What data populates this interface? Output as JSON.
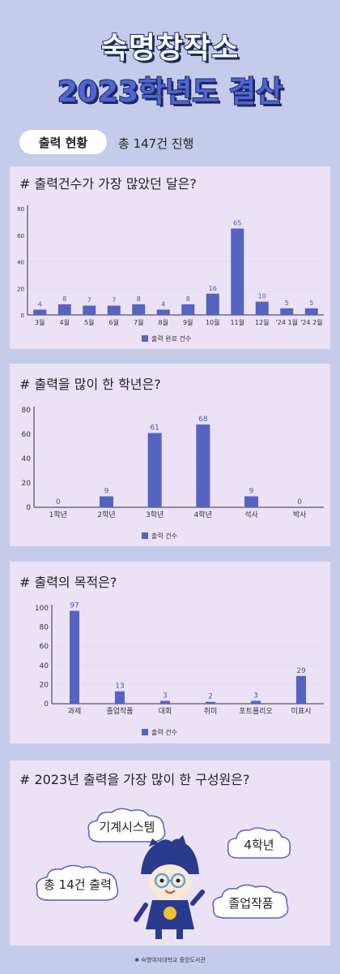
{
  "header": {
    "title_line1": "숙명창작소",
    "title_line2": "2023학년도 결산"
  },
  "summary": {
    "pill_label": "출력 현황",
    "text": "총 147건 진행"
  },
  "panel1": {
    "question": "# 출력건수가 가장 많았던 달은?"
  },
  "panel2": {
    "question": "# 출력을 많이 한 학년은?"
  },
  "panel3": {
    "question": "# 출력의 목적은?"
  },
  "panel4": {
    "question": "# 2023년 출력을 가장 많이 한 구성원은?",
    "clouds": [
      "기계시스템",
      "4학년",
      "총 14건 출력",
      "졸업작품"
    ]
  },
  "footer": {
    "text": "숙명여자대학교 중앙도서관"
  },
  "colors": {
    "bar": "#5563c1",
    "panel": "#ebe2f6",
    "background": "#c5cbe8"
  },
  "chart_data": [
    {
      "type": "bar",
      "categories": [
        "3월",
        "4월",
        "5월",
        "6월",
        "7월",
        "8월",
        "9월",
        "10월",
        "11월",
        "12월",
        "'24 1월",
        "'24 2월"
      ],
      "values": [
        4,
        8,
        7,
        7,
        8,
        4,
        8,
        16,
        65,
        10,
        5,
        5
      ],
      "legend": "출력 완료 건수",
      "ylim": [
        0,
        80
      ],
      "yticks": [
        0,
        20,
        40,
        60,
        80
      ]
    },
    {
      "type": "bar",
      "categories": [
        "1학년",
        "2학년",
        "3학년",
        "4학년",
        "석사",
        "박사"
      ],
      "values": [
        0,
        9,
        61,
        68,
        9,
        0
      ],
      "legend": "출력 건수",
      "ylim": [
        0,
        80
      ],
      "yticks": [
        0,
        20,
        40,
        60,
        80
      ]
    },
    {
      "type": "bar",
      "categories": [
        "과제",
        "졸업작품",
        "대회",
        "취미",
        "포트폴리오",
        "미표시"
      ],
      "values": [
        97,
        13,
        3,
        2,
        3,
        29
      ],
      "legend": "출력 건수",
      "ylim": [
        0,
        100
      ],
      "yticks": [
        0,
        20,
        40,
        60,
        80,
        100
      ]
    }
  ]
}
